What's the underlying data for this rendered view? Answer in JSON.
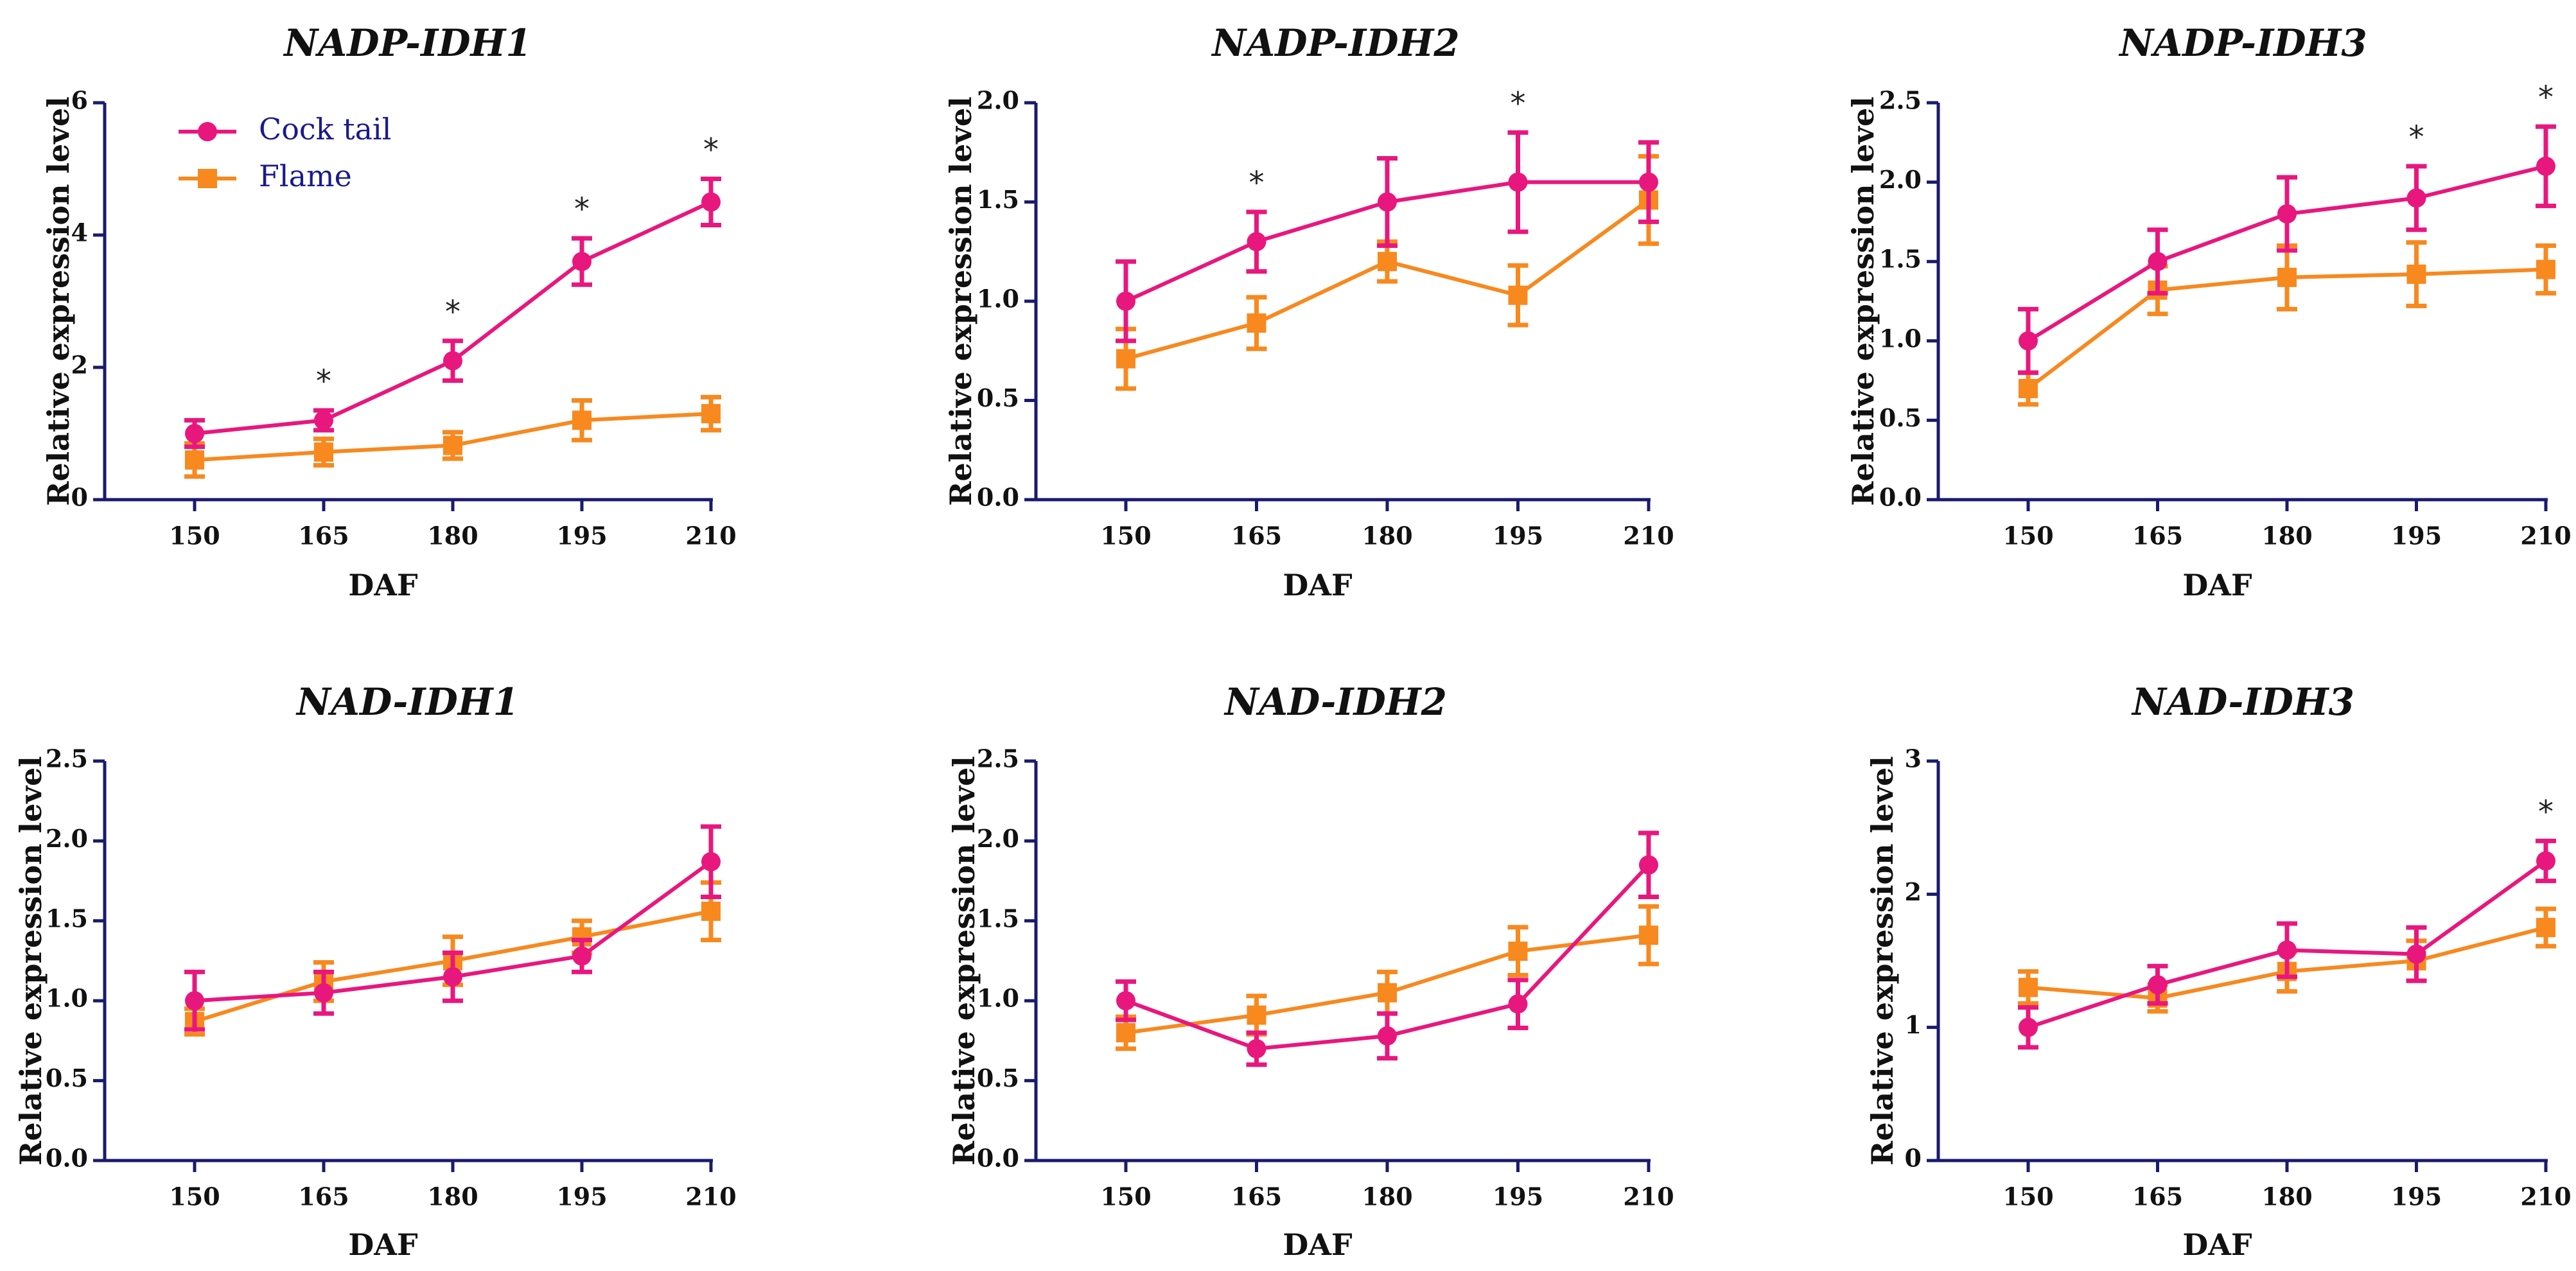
{
  "colors": {
    "cock_tail": "#e8177e",
    "flame": "#f7891f",
    "axis": "#1a1a6e"
  },
  "chart_data": [
    {
      "type": "line",
      "title": "NADP-IDH1",
      "xlabel": "DAF",
      "ylabel": "Relative expression level",
      "categories": [
        "150",
        "165",
        "180",
        "195",
        "210"
      ],
      "ylim": [
        0,
        6
      ],
      "yticks": [
        "0",
        "2",
        "4",
        "6"
      ],
      "legend": {
        "position": "top-left",
        "entries": [
          "Cock tail",
          "Flame"
        ]
      },
      "series": [
        {
          "name": "Cock tail",
          "values": [
            1.0,
            1.2,
            2.1,
            3.6,
            4.5
          ],
          "errors": [
            0.2,
            0.15,
            0.3,
            0.35,
            0.35
          ]
        },
        {
          "name": "Flame",
          "values": [
            0.6,
            0.72,
            0.82,
            1.2,
            1.3
          ],
          "errors": [
            0.25,
            0.2,
            0.2,
            0.3,
            0.25
          ]
        }
      ],
      "significance": [
        "",
        "*",
        "*",
        "*",
        "*"
      ]
    },
    {
      "type": "line",
      "title": "NADP-IDH2",
      "xlabel": "DAF",
      "ylabel": "Relative expression level",
      "categories": [
        "150",
        "165",
        "180",
        "195",
        "210"
      ],
      "ylim": [
        0,
        2.0
      ],
      "yticks": [
        "0.0",
        "0.5",
        "1.0",
        "1.5",
        "2.0"
      ],
      "series": [
        {
          "name": "Cock tail",
          "values": [
            1.0,
            1.3,
            1.5,
            1.6,
            1.6
          ],
          "errors": [
            0.2,
            0.15,
            0.22,
            0.25,
            0.2
          ]
        },
        {
          "name": "Flame",
          "values": [
            0.71,
            0.89,
            1.2,
            1.03,
            1.51
          ],
          "errors": [
            0.15,
            0.13,
            0.1,
            0.15,
            0.22
          ]
        }
      ],
      "significance": [
        "",
        "*",
        "",
        "*",
        ""
      ]
    },
    {
      "type": "line",
      "title": "NADP-IDH3",
      "xlabel": "DAF",
      "ylabel": "Relative expression level",
      "categories": [
        "150",
        "165",
        "180",
        "195",
        "210"
      ],
      "ylim": [
        0,
        2.5
      ],
      "yticks": [
        "0.0",
        "0.5",
        "1.0",
        "1.5",
        "2.0",
        "2.5"
      ],
      "series": [
        {
          "name": "Cock tail",
          "values": [
            1.0,
            1.5,
            1.8,
            1.9,
            2.1
          ],
          "errors": [
            0.2,
            0.2,
            0.23,
            0.2,
            0.25
          ]
        },
        {
          "name": "Flame",
          "values": [
            0.7,
            1.32,
            1.4,
            1.42,
            1.45
          ],
          "errors": [
            0.1,
            0.15,
            0.2,
            0.2,
            0.15
          ]
        }
      ],
      "significance": [
        "",
        "",
        "",
        "*",
        "*"
      ]
    },
    {
      "type": "line",
      "title": "NAD-IDH1",
      "xlabel": "DAF",
      "ylabel": "Relative expression level",
      "categories": [
        "150",
        "165",
        "180",
        "195",
        "210"
      ],
      "ylim": [
        0,
        2.5
      ],
      "yticks": [
        "0.0",
        "0.5",
        "1.0",
        "1.5",
        "2.0",
        "2.5"
      ],
      "series": [
        {
          "name": "Cock tail",
          "values": [
            1.0,
            1.05,
            1.15,
            1.28,
            1.87
          ],
          "errors": [
            0.18,
            0.13,
            0.15,
            0.1,
            0.22
          ]
        },
        {
          "name": "Flame",
          "values": [
            0.87,
            1.12,
            1.25,
            1.4,
            1.56
          ],
          "errors": [
            0.08,
            0.12,
            0.15,
            0.1,
            0.18
          ]
        }
      ],
      "significance": [
        "",
        "",
        "",
        "",
        ""
      ]
    },
    {
      "type": "line",
      "title": "NAD-IDH2",
      "xlabel": "DAF",
      "ylabel": "Relative expression level",
      "categories": [
        "150",
        "165",
        "180",
        "195",
        "210"
      ],
      "ylim": [
        0,
        2.5
      ],
      "yticks": [
        "0.0",
        "0.5",
        "1.0",
        "1.5",
        "2.0",
        "2.5"
      ],
      "series": [
        {
          "name": "Cock tail",
          "values": [
            1.0,
            0.7,
            0.78,
            0.98,
            1.85
          ],
          "errors": [
            0.12,
            0.1,
            0.14,
            0.15,
            0.2
          ]
        },
        {
          "name": "Flame",
          "values": [
            0.8,
            0.91,
            1.05,
            1.31,
            1.41
          ],
          "errors": [
            0.1,
            0.12,
            0.13,
            0.15,
            0.18
          ]
        }
      ],
      "significance": [
        "",
        "",
        "",
        "",
        ""
      ]
    },
    {
      "type": "line",
      "title": "NAD-IDH3",
      "xlabel": "DAF",
      "ylabel": "Relative expression level",
      "categories": [
        "150",
        "165",
        "180",
        "195",
        "210"
      ],
      "ylim": [
        0,
        3
      ],
      "yticks": [
        "0",
        "1",
        "2",
        "3"
      ],
      "series": [
        {
          "name": "Cock tail",
          "values": [
            1.0,
            1.32,
            1.58,
            1.55,
            2.25
          ],
          "errors": [
            0.15,
            0.14,
            0.2,
            0.2,
            0.15
          ]
        },
        {
          "name": "Flame",
          "values": [
            1.3,
            1.22,
            1.42,
            1.5,
            1.75
          ],
          "errors": [
            0.12,
            0.1,
            0.15,
            0.15,
            0.14
          ]
        }
      ],
      "significance": [
        "",
        "",
        "",
        "",
        "*"
      ]
    }
  ]
}
